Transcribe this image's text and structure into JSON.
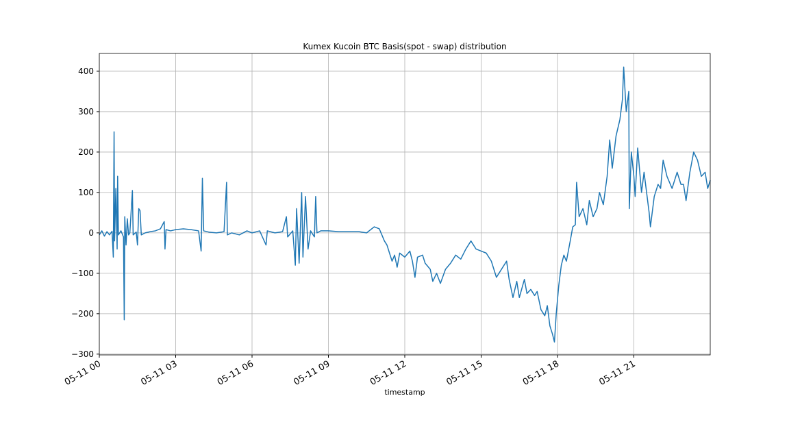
{
  "chart_data": {
    "type": "line",
    "title": "Kumex Kucoin BTC Basis(spot - swap) distribution",
    "x_label": "timestamp",
    "xlim": [
      0,
      24
    ],
    "ylim": [
      -302,
      444
    ],
    "xticks": [
      {
        "value": 0,
        "label": "05-11 00"
      },
      {
        "value": 3,
        "label": "05-11 03"
      },
      {
        "value": 6,
        "label": "05-11 06"
      },
      {
        "value": 9,
        "label": "05-11 09"
      },
      {
        "value": 12,
        "label": "05-11 12"
      },
      {
        "value": 15,
        "label": "05-11 15"
      },
      {
        "value": 18,
        "label": "05-11 18"
      },
      {
        "value": 21,
        "label": "05-11 21"
      }
    ],
    "yticks": [
      {
        "value": -300,
        "label": "−300"
      },
      {
        "value": -200,
        "label": "−200"
      },
      {
        "value": -100,
        "label": "−100"
      },
      0,
      100,
      200,
      300,
      400
    ],
    "grid": true,
    "series": [
      {
        "color": "#1f77b4",
        "x": [
          0.0,
          0.1,
          0.2,
          0.3,
          0.4,
          0.5,
          0.55,
          0.58,
          0.6,
          0.65,
          0.7,
          0.72,
          0.75,
          0.85,
          0.95,
          0.98,
          1.0,
          1.05,
          1.1,
          1.15,
          1.2,
          1.3,
          1.33,
          1.45,
          1.5,
          1.55,
          1.6,
          1.65,
          1.8,
          2.0,
          2.2,
          2.4,
          2.55,
          2.58,
          2.62,
          2.8,
          3.0,
          3.3,
          3.6,
          3.9,
          4.0,
          4.05,
          4.1,
          4.3,
          4.6,
          4.9,
          5.0,
          5.03,
          5.2,
          5.5,
          5.8,
          6.0,
          6.3,
          6.55,
          6.6,
          6.9,
          7.2,
          7.35,
          7.4,
          7.6,
          7.7,
          7.75,
          7.85,
          7.95,
          8.0,
          8.1,
          8.2,
          8.3,
          8.45,
          8.5,
          8.55,
          8.7,
          9.0,
          9.4,
          9.8,
          10.2,
          10.5,
          10.8,
          11.0,
          11.1,
          11.2,
          11.3,
          11.4,
          11.5,
          11.6,
          11.7,
          11.8,
          12.0,
          12.2,
          12.3,
          12.4,
          12.5,
          12.7,
          12.8,
          13.0,
          13.1,
          13.25,
          13.4,
          13.6,
          13.8,
          14.0,
          14.2,
          14.4,
          14.6,
          14.8,
          15.0,
          15.2,
          15.4,
          15.6,
          15.8,
          16.0,
          16.1,
          16.25,
          16.4,
          16.5,
          16.7,
          16.8,
          16.95,
          17.1,
          17.2,
          17.35,
          17.5,
          17.6,
          17.7,
          17.8,
          17.88,
          17.95,
          18.05,
          18.15,
          18.25,
          18.35,
          18.5,
          18.6,
          18.7,
          18.75,
          18.85,
          19.0,
          19.15,
          19.25,
          19.4,
          19.55,
          19.65,
          19.8,
          19.95,
          20.05,
          20.15,
          20.3,
          20.45,
          20.55,
          20.6,
          20.7,
          20.8,
          20.82,
          20.9,
          21.0,
          21.05,
          21.15,
          21.3,
          21.4,
          21.5,
          21.6,
          21.65,
          21.8,
          21.95,
          22.05,
          22.15,
          22.3,
          22.5,
          22.7,
          22.85,
          22.95,
          23.05,
          23.2,
          23.35,
          23.5,
          23.65,
          23.8,
          23.9,
          24.0
        ],
        "values": [
          -5,
          5,
          -8,
          3,
          -5,
          4,
          -60,
          250,
          -20,
          110,
          -40,
          140,
          -5,
          5,
          -10,
          -215,
          40,
          -30,
          35,
          -5,
          0,
          105,
          -5,
          2,
          -30,
          60,
          55,
          -5,
          0,
          3,
          5,
          10,
          28,
          -40,
          8,
          5,
          8,
          10,
          8,
          5,
          -45,
          135,
          5,
          2,
          0,
          3,
          125,
          -5,
          0,
          -5,
          5,
          0,
          5,
          -30,
          5,
          0,
          3,
          40,
          -10,
          5,
          -80,
          60,
          -75,
          100,
          -60,
          90,
          -40,
          5,
          -10,
          90,
          0,
          5,
          5,
          3,
          3,
          3,
          0,
          15,
          10,
          -5,
          -20,
          -30,
          -50,
          -70,
          -55,
          -85,
          -50,
          -60,
          -45,
          -70,
          -110,
          -60,
          -55,
          -75,
          -90,
          -120,
          -100,
          -125,
          -90,
          -75,
          -55,
          -65,
          -40,
          -20,
          -40,
          -45,
          -50,
          -70,
          -110,
          -90,
          -70,
          -115,
          -160,
          -120,
          -160,
          -115,
          -150,
          -140,
          -155,
          -145,
          -190,
          -205,
          -180,
          -230,
          -250,
          -270,
          -200,
          -130,
          -80,
          -55,
          -70,
          -20,
          15,
          20,
          125,
          40,
          60,
          20,
          80,
          40,
          60,
          100,
          70,
          140,
          230,
          160,
          240,
          280,
          330,
          410,
          300,
          350,
          60,
          200,
          140,
          90,
          210,
          100,
          150,
          100,
          50,
          15,
          90,
          120,
          110,
          180,
          140,
          110,
          150,
          120,
          120,
          80,
          150,
          200,
          180,
          140,
          150,
          110,
          130
        ]
      }
    ]
  }
}
